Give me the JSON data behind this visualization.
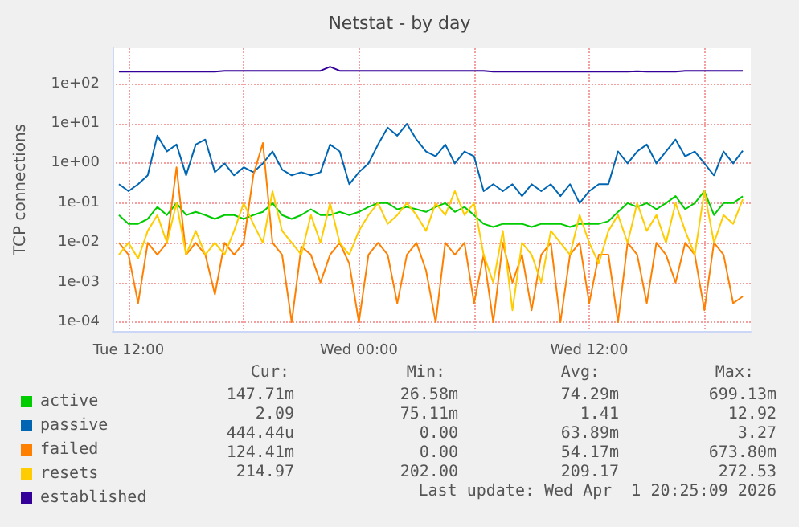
{
  "chart_data": {
    "type": "line",
    "title": "Netstat - by day",
    "ylabel": "TCP connections",
    "x": [
      "2026-03-31T11:30",
      "2026-03-31T12:00",
      "2026-03-31T12:30",
      "2026-03-31T13:00",
      "2026-03-31T13:30",
      "2026-03-31T14:00",
      "2026-03-31T14:30",
      "2026-03-31T15:00",
      "2026-03-31T15:30",
      "2026-03-31T16:00",
      "2026-03-31T16:30",
      "2026-03-31T17:00",
      "2026-03-31T17:30",
      "2026-03-31T18:00",
      "2026-03-31T18:30",
      "2026-03-31T19:00",
      "2026-03-31T19:30",
      "2026-03-31T20:00",
      "2026-03-31T20:30",
      "2026-03-31T21:00",
      "2026-03-31T21:30",
      "2026-03-31T22:00",
      "2026-03-31T22:30",
      "2026-03-31T23:00",
      "2026-03-31T23:30",
      "2026-04-01T00:00",
      "2026-04-01T00:30",
      "2026-04-01T01:00",
      "2026-04-01T01:30",
      "2026-04-01T02:00",
      "2026-04-01T02:30",
      "2026-04-01T03:00",
      "2026-04-01T03:30",
      "2026-04-01T04:00",
      "2026-04-01T04:30",
      "2026-04-01T05:00",
      "2026-04-01T05:30",
      "2026-04-01T06:00",
      "2026-04-01T06:30",
      "2026-04-01T07:00",
      "2026-04-01T07:30",
      "2026-04-01T08:00",
      "2026-04-01T08:30",
      "2026-04-01T09:00",
      "2026-04-01T09:30",
      "2026-04-01T10:00",
      "2026-04-01T10:30",
      "2026-04-01T11:00",
      "2026-04-01T11:30",
      "2026-04-01T12:00",
      "2026-04-01T12:30",
      "2026-04-01T13:00",
      "2026-04-01T13:30",
      "2026-04-01T14:00",
      "2026-04-01T14:30",
      "2026-04-01T15:00",
      "2026-04-01T15:30",
      "2026-04-01T16:00",
      "2026-04-01T16:30",
      "2026-04-01T17:00",
      "2026-04-01T17:30",
      "2026-04-01T18:00",
      "2026-04-01T18:30",
      "2026-04-01T19:00",
      "2026-04-01T19:30",
      "2026-04-01T20:00"
    ],
    "series": [
      {
        "name": "active",
        "color": "#00cc00",
        "values": [
          0.05,
          0.03,
          0.03,
          0.04,
          0.08,
          0.05,
          0.1,
          0.05,
          0.06,
          0.05,
          0.04,
          0.05,
          0.05,
          0.04,
          0.05,
          0.06,
          0.1,
          0.05,
          0.04,
          0.05,
          0.07,
          0.05,
          0.05,
          0.06,
          0.05,
          0.06,
          0.08,
          0.1,
          0.1,
          0.07,
          0.08,
          0.07,
          0.06,
          0.08,
          0.1,
          0.06,
          0.08,
          0.05,
          0.03,
          0.025,
          0.03,
          0.03,
          0.03,
          0.025,
          0.03,
          0.03,
          0.03,
          0.025,
          0.03,
          0.03,
          0.03,
          0.035,
          0.06,
          0.1,
          0.08,
          0.1,
          0.07,
          0.1,
          0.15,
          0.07,
          0.1,
          0.2,
          0.05,
          0.1,
          0.1,
          0.148
        ]
      },
      {
        "name": "passive",
        "color": "#0066b3",
        "values": [
          0.3,
          0.2,
          0.3,
          0.5,
          5,
          2,
          3,
          0.5,
          3,
          4,
          0.6,
          1,
          0.5,
          0.8,
          0.6,
          1,
          2,
          0.7,
          0.5,
          0.6,
          0.5,
          0.6,
          3,
          2,
          0.3,
          0.6,
          1,
          3,
          8,
          5,
          10,
          4,
          2,
          1.5,
          3,
          1,
          2,
          1.5,
          0.2,
          0.3,
          0.2,
          0.3,
          0.15,
          0.3,
          0.2,
          0.3,
          0.15,
          0.3,
          0.1,
          0.2,
          0.3,
          0.3,
          2,
          1,
          2,
          3,
          1,
          2,
          4,
          1.5,
          2,
          1,
          0.5,
          2,
          1,
          2.09
        ]
      },
      {
        "name": "failed",
        "color": "#ff8000",
        "values": [
          0.01,
          0.005,
          0.0003,
          0.01,
          0.005,
          0.01,
          0.8,
          0.005,
          0.01,
          0.005,
          0.0005,
          0.01,
          0.005,
          0.01,
          0.5,
          3.27,
          0.01,
          0.005,
          0.0001,
          0.008,
          0.005,
          0.001,
          0.005,
          0.01,
          0.003,
          0.0001,
          0.005,
          0.01,
          0.005,
          0.0003,
          0.005,
          0.01,
          0.002,
          0.0001,
          0.01,
          0.005,
          0.01,
          0.0003,
          0.005,
          0.0001,
          0.01,
          0.001,
          0.005,
          0.0002,
          0.005,
          0.01,
          0.0001,
          0.005,
          0.01,
          0.0003,
          0.005,
          0.005,
          0.0001,
          0.01,
          0.005,
          0.0003,
          0.01,
          0.005,
          0.001,
          0.01,
          0.005,
          0.0002,
          0.01,
          0.005,
          0.0003,
          0.000444
        ]
      },
      {
        "name": "resets",
        "color": "#ffcc00",
        "values": [
          0.005,
          0.01,
          0.004,
          0.02,
          0.05,
          0.01,
          0.1,
          0.005,
          0.02,
          0.005,
          0.01,
          0.005,
          0.02,
          0.1,
          0.03,
          0.01,
          0.2,
          0.02,
          0.01,
          0.005,
          0.05,
          0.01,
          0.1,
          0.01,
          0.005,
          0.02,
          0.05,
          0.1,
          0.03,
          0.05,
          0.1,
          0.05,
          0.02,
          0.1,
          0.05,
          0.2,
          0.05,
          0.1,
          0.005,
          0.001,
          0.02,
          0.0002,
          0.01,
          0.005,
          0.001,
          0.02,
          0.01,
          0.005,
          0.05,
          0.01,
          0.003,
          0.02,
          0.05,
          0.01,
          0.1,
          0.02,
          0.05,
          0.01,
          0.1,
          0.02,
          0.005,
          0.2,
          0.01,
          0.05,
          0.03,
          0.124
        ]
      },
      {
        "name": "established",
        "color": "#330099",
        "values": [
          205,
          205,
          205,
          205,
          205,
          205,
          205,
          205,
          205,
          205,
          205,
          215,
          215,
          215,
          215,
          215,
          215,
          215,
          215,
          215,
          215,
          215,
          272.53,
          215,
          215,
          215,
          215,
          215,
          215,
          215,
          215,
          215,
          215,
          215,
          215,
          215,
          215,
          215,
          215,
          205,
          205,
          205,
          205,
          205,
          205,
          205,
          205,
          205,
          205,
          205,
          205,
          205,
          205,
          205,
          210,
          205,
          205,
          205,
          205,
          215,
          215,
          215,
          215,
          215,
          215,
          214.97
        ]
      }
    ],
    "xlim": [
      "2026-03-31T11:10",
      "2026-04-01T20:25"
    ],
    "xticks": [
      {
        "value": "2026-03-31T12:00",
        "label": "Tue 12:00"
      },
      {
        "value": "2026-03-31T18:00",
        "label": null
      },
      {
        "value": "2026-04-01T00:00",
        "label": "Wed 00:00"
      },
      {
        "value": "2026-04-01T06:00",
        "label": null
      },
      {
        "value": "2026-04-01T12:00",
        "label": "Wed 12:00"
      },
      {
        "value": "2026-04-01T18:00",
        "label": null
      }
    ],
    "ylim": [
      6e-05,
      800
    ],
    "yticks": [
      {
        "value": 0.0001,
        "label": "1e-04"
      },
      {
        "value": 0.001,
        "label": "1e-03"
      },
      {
        "value": 0.01,
        "label": "1e-02"
      },
      {
        "value": 0.1,
        "label": "1e-01"
      },
      {
        "value": 1,
        "label": "1e+00"
      },
      {
        "value": 10,
        "label": "1e+01"
      },
      {
        "value": 100,
        "label": "1e+02"
      }
    ],
    "log": "y",
    "grid": true,
    "legend": "bottom left",
    "marker": "none",
    "line_style": "solid",
    "annotations": [
      "Cur:",
      "Min:",
      "Avg:",
      "Max:",
      "147.71m",
      "26.58m",
      "74.29m",
      "699.13m",
      "2.09",
      "75.11m",
      "1.41",
      "12.92",
      "444.44u",
      "0.00",
      "63.89m",
      "3.27",
      "124.41m",
      "0.00",
      "54.17m",
      "673.80m",
      "214.97",
      "202.00",
      "209.17",
      "272.53",
      "Last update: Wed Apr  1 20:25:09 2026"
    ]
  }
}
